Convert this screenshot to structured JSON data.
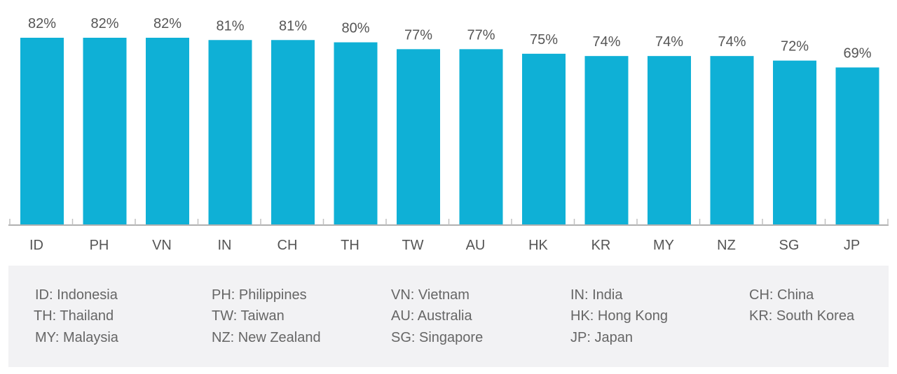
{
  "chart_data": {
    "type": "bar",
    "categories": [
      "ID",
      "PH",
      "VN",
      "IN",
      "CH",
      "TH",
      "TW",
      "AU",
      "HK",
      "KR",
      "MY",
      "NZ",
      "SG",
      "JP"
    ],
    "values": [
      82,
      82,
      82,
      81,
      81,
      80,
      77,
      77,
      75,
      74,
      74,
      74,
      72,
      69
    ],
    "data_labels": [
      "82%",
      "82%",
      "82%",
      "81%",
      "81%",
      "80%",
      "77%",
      "77%",
      "75%",
      "74%",
      "74%",
      "74%",
      "72%",
      "69%"
    ],
    "title": "",
    "xlabel": "",
    "ylabel": "",
    "value_unit": "%",
    "grid": false,
    "bar_color": "#0fb0d6"
  },
  "legend": {
    "items": [
      "ID: Indonesia",
      "PH: Philippines",
      "VN: Vietnam",
      "IN: India",
      "CH: China",
      "TH: Thailand",
      "TW: Taiwan",
      "AU: Australia",
      "HK: Hong Kong",
      "KR: South Korea",
      "MY: Malaysia",
      "NZ: New Zealand",
      "SG: Singapore",
      "JP: Japan"
    ]
  }
}
